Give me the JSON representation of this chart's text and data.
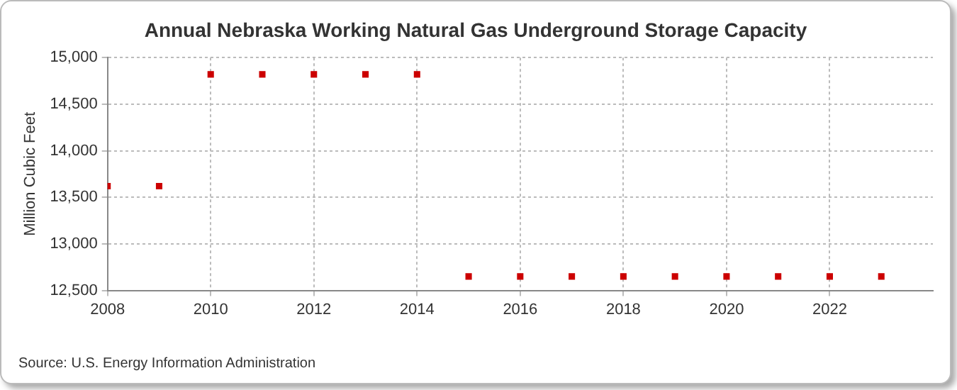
{
  "chart_data": {
    "type": "scatter",
    "title": "Annual Nebraska Working Natural Gas Underground Storage Capacity",
    "ylabel": "Million Cubic Feet",
    "annotations": [
      "Source: U.S. Energy Information Administration"
    ],
    "x": [
      2008,
      2009,
      2010,
      2011,
      2012,
      2013,
      2014,
      2015,
      2016,
      2017,
      2018,
      2019,
      2020,
      2021,
      2022,
      2023
    ],
    "series": [
      {
        "color": "#cc0000",
        "values": [
          13620,
          13620,
          14820,
          14820,
          14820,
          14820,
          14820,
          12650,
          12650,
          12650,
          12650,
          12650,
          12650,
          12650,
          12650,
          12650
        ]
      }
    ],
    "xlim": [
      2008,
      2024
    ],
    "xticks": [
      2008,
      2010,
      2012,
      2014,
      2016,
      2018,
      2020,
      2022
    ],
    "ylim": [
      12500,
      15000
    ],
    "yticks": [
      {
        "value": 12500,
        "label": "12,500"
      },
      {
        "value": 13000,
        "label": "13,000"
      },
      {
        "value": 13500,
        "label": "13,500"
      },
      {
        "value": 14000,
        "label": "14,000"
      },
      {
        "value": 14500,
        "label": "14,500"
      },
      {
        "value": 15000,
        "label": "15,000"
      }
    ],
    "grid": true,
    "legend": false,
    "marker": "square"
  }
}
